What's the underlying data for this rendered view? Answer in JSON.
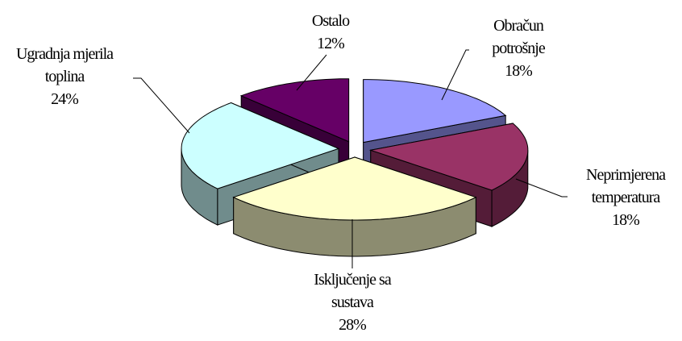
{
  "chart_data": {
    "type": "pie",
    "categories": [
      "Obračun potrošnje",
      "Neprimjerena temperatura",
      "Isključenje sa sustava",
      "Ugradnja mjerila toplina",
      "Ostalo"
    ],
    "values": [
      18,
      18,
      28,
      24,
      12
    ],
    "value_labels": [
      "18%",
      "18%",
      "28%",
      "24%",
      "12%"
    ],
    "colors": [
      "#9999ff",
      "#993366",
      "#ffffcc",
      "#ccffff",
      "#660066"
    ]
  }
}
